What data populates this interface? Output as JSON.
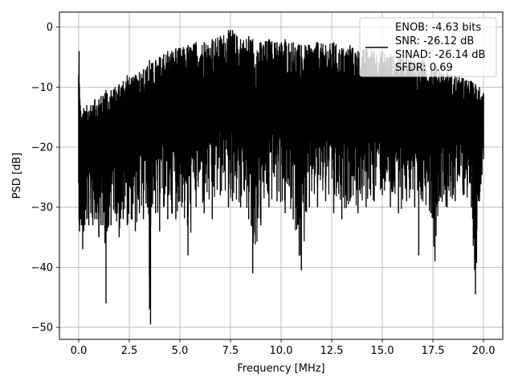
{
  "chart_data": {
    "type": "line",
    "title": "",
    "xlabel": "Frequency [MHz]",
    "ylabel": "PSD [dB]",
    "xlim": [
      -0.95,
      20.95
    ],
    "ylim": [
      -52.0,
      2.5
    ],
    "xticks": [
      0.0,
      2.5,
      5.0,
      7.5,
      10.0,
      12.5,
      15.0,
      17.5,
      20.0
    ],
    "xtick_labels": [
      "0.0",
      "2.5",
      "5.0",
      "7.5",
      "10.0",
      "12.5",
      "15.0",
      "17.5",
      "20.0"
    ],
    "yticks": [
      0,
      -10,
      -20,
      -30,
      -40,
      -50
    ],
    "ytick_labels": [
      "0",
      "−10",
      "−20",
      "−30",
      "−40",
      "−50"
    ],
    "grid": true,
    "legend_position": "top-right",
    "legend_lines": [
      "ENOB: -4.63 bits",
      "SNR: -26.12 dB",
      "SINAD: -26.14 dB",
      "SFDR: 0.69"
    ],
    "series": [
      {
        "color": "#000000",
        "x": [
          0.0,
          0.02,
          0.04,
          0.06,
          0.08,
          0.1,
          0.15,
          0.2,
          0.25,
          0.3,
          0.4,
          0.5,
          0.6,
          0.7,
          0.8,
          0.9,
          1.0,
          1.1,
          1.2,
          1.3,
          1.35,
          1.4,
          1.6,
          1.8,
          2.0,
          2.2,
          2.4,
          2.6,
          2.8,
          3.0,
          3.2,
          3.4,
          3.5,
          3.55,
          3.6,
          3.8,
          4.0,
          4.2,
          4.4,
          4.6,
          4.8,
          5.0,
          5.4,
          5.8,
          6.2,
          6.6,
          7.0,
          7.4,
          7.6,
          8.0,
          8.4,
          8.6,
          9.0,
          9.4,
          9.8,
          10.2,
          10.6,
          11.0,
          11.4,
          11.8,
          12.2,
          12.6,
          13.0,
          13.4,
          13.8,
          14.2,
          14.6,
          15.0,
          15.4,
          15.8,
          16.2,
          16.6,
          16.8,
          17.0,
          17.4,
          17.6,
          17.8,
          18.2,
          18.6,
          19.0,
          19.4,
          19.6,
          19.8,
          20.0
        ],
        "upper": [
          -8.0,
          -4.0,
          -10.0,
          -12.0,
          -13.0,
          -14.0,
          -15.0,
          -14.5,
          -13.5,
          -14.0,
          -13.0,
          -14.0,
          -13.0,
          -13.0,
          -12.0,
          -13.0,
          -12.0,
          -11.5,
          -11.5,
          -11.0,
          -10.5,
          -11.0,
          -10.5,
          -10.0,
          -9.5,
          -9.0,
          -8.0,
          -8.5,
          -8.0,
          -7.5,
          -7.0,
          -6.5,
          -5.5,
          -7.0,
          -6.0,
          -5.5,
          -5.0,
          -4.5,
          -4.0,
          -4.0,
          -3.5,
          -3.5,
          -3.0,
          -2.5,
          -2.5,
          -2.0,
          -1.5,
          -0.5,
          -0.5,
          -2.0,
          -1.5,
          -2.0,
          -2.5,
          -2.0,
          -2.5,
          -2.0,
          -2.5,
          -3.0,
          -3.0,
          -2.5,
          -3.0,
          -2.5,
          -3.5,
          -3.0,
          -4.0,
          -3.5,
          -4.0,
          -4.0,
          -4.5,
          -5.0,
          -5.0,
          -5.5,
          -6.0,
          -5.5,
          -6.5,
          -6.0,
          -7.0,
          -7.5,
          -8.0,
          -8.5,
          -9.0,
          -9.5,
          -10.0,
          -11.0
        ],
        "lower": [
          -26.0,
          -32.0,
          -34.0,
          -33.0,
          -30.0,
          -32.0,
          -33.0,
          -37.0,
          -34.0,
          -33.0,
          -32.0,
          -33.0,
          -31.0,
          -33.0,
          -32.0,
          -32.0,
          -35.0,
          -33.0,
          -33.0,
          -36.0,
          -46.0,
          -34.0,
          -33.0,
          -31.0,
          -35.0,
          -32.0,
          -33.0,
          -32.0,
          -34.0,
          -31.0,
          -32.0,
          -30.0,
          -47.0,
          -49.5,
          -30.0,
          -31.0,
          -34.0,
          -30.0,
          -32.0,
          -31.0,
          -32.0,
          -29.0,
          -38.0,
          -30.0,
          -31.0,
          -32.0,
          -28.0,
          -30.0,
          -29.0,
          -30.0,
          -32.0,
          -41.0,
          -33.0,
          -30.0,
          -29.0,
          -31.0,
          -32.0,
          -40.5,
          -30.0,
          -30.0,
          -29.0,
          -31.0,
          -32.0,
          -29.0,
          -31.0,
          -30.0,
          -29.0,
          -28.0,
          -30.0,
          -31.0,
          -29.0,
          -30.0,
          -38.0,
          -29.0,
          -31.0,
          -39.0,
          -29.0,
          -30.0,
          -29.0,
          -28.0,
          -30.0,
          -44.5,
          -29.0,
          -22.0
        ]
      }
    ]
  }
}
